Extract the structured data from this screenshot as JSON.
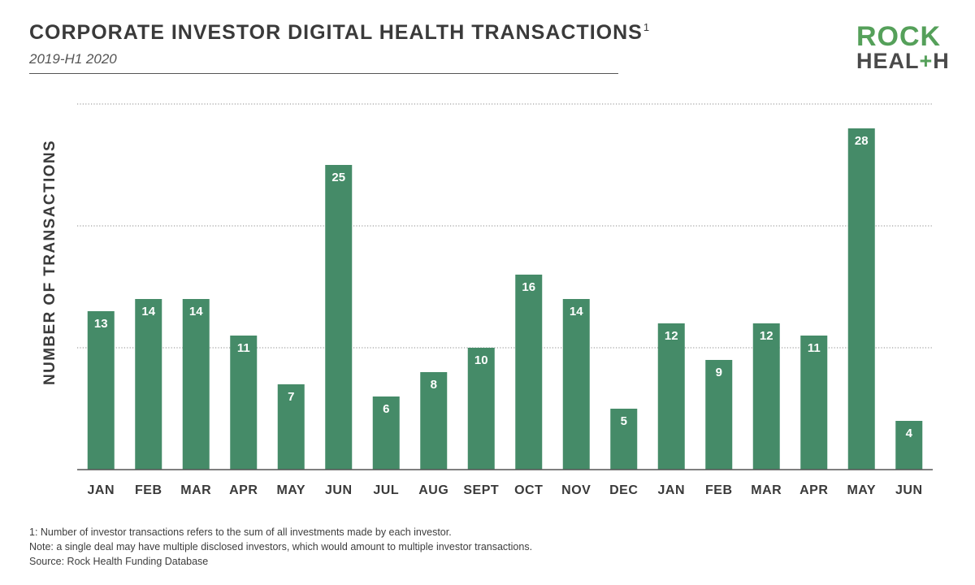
{
  "header": {
    "title": "CORPORATE INVESTOR DIGITAL HEALTH TRANSACTIONS",
    "title_footnote_mark": "1",
    "subtitle": "2019-H1 2020"
  },
  "logo": {
    "line1": "ROCK",
    "line2_part1": "HEAL",
    "line2_plus": "+",
    "line2_part2": "H"
  },
  "colors": {
    "bar": "#458b68",
    "logo_green": "#55a05a",
    "text": "#3d3d3d"
  },
  "chart_data": {
    "type": "bar",
    "title": "CORPORATE INVESTOR DIGITAL HEALTH TRANSACTIONS",
    "xlabel": "",
    "ylabel": "NUMBER OF TRANSACTIONS",
    "categories": [
      "JAN",
      "FEB",
      "MAR",
      "APR",
      "MAY",
      "JUN",
      "JUL",
      "AUG",
      "SEPT",
      "OCT",
      "NOV",
      "DEC",
      "JAN",
      "FEB",
      "MAR",
      "APR",
      "MAY",
      "JUN"
    ],
    "values": [
      13,
      14,
      14,
      11,
      7,
      25,
      6,
      8,
      10,
      16,
      14,
      5,
      12,
      9,
      12,
      11,
      28,
      4
    ],
    "ylim": [
      0,
      30
    ],
    "gridlines": [
      10,
      20,
      30
    ],
    "grid": "dotted horizontal",
    "data_labels": "inside top of bars"
  },
  "footnotes": {
    "note1": "1: Number of investor transactions refers to the sum of all investments made by each investor.",
    "note2": "Note: a single deal may have multiple disclosed investors, which would amount to multiple investor transactions.",
    "source": "Source: Rock Health Funding Database"
  }
}
